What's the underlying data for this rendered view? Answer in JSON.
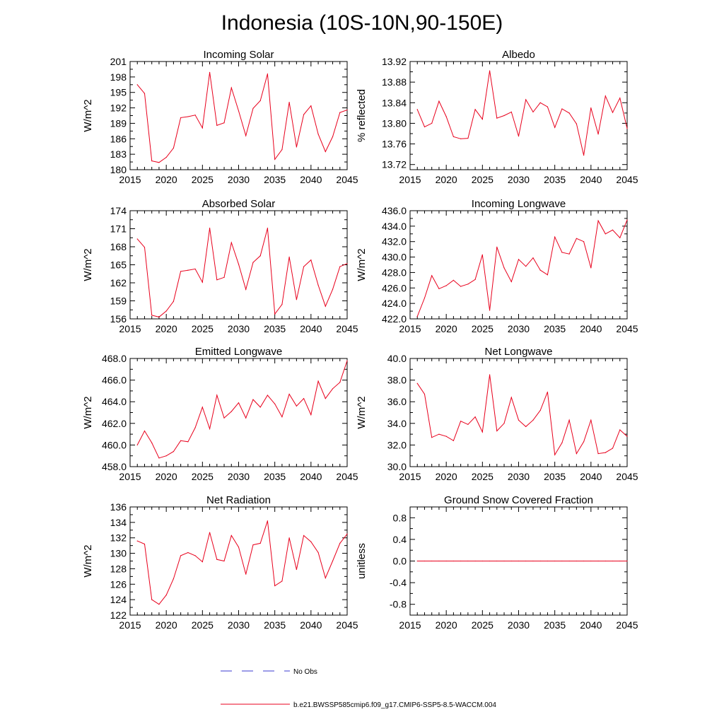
{
  "figure": {
    "title": "Indonesia (10S-10N,90-150E)"
  },
  "legend": {
    "entries": [
      {
        "label": "No Obs",
        "color": "#3b3bd0",
        "style": "dashed"
      },
      {
        "label": "b.e21.BWSSP585cmip6.f09_g17.CMIP6-SSP5-8.5-WACCM.004",
        "color": "#e8001c",
        "style": "solid"
      }
    ]
  },
  "colors": {
    "series": "#e8001c",
    "axes": "#000000"
  },
  "chart_data": [
    {
      "type": "line",
      "title": "Incoming Solar",
      "ylabel": "W/m^2",
      "xlim": [
        2015,
        2045
      ],
      "ylim": [
        180,
        201
      ],
      "yticks": [
        "180",
        "183",
        "186",
        "189",
        "192",
        "195",
        "198",
        "201"
      ],
      "xticks": [
        "2015",
        "2020",
        "2025",
        "2030",
        "2035",
        "2040",
        "2045"
      ],
      "x": [
        2016,
        2017,
        2018,
        2019,
        2020,
        2021,
        2022,
        2023,
        2024,
        2025,
        2026,
        2027,
        2028,
        2029,
        2030,
        2031,
        2032,
        2033,
        2034,
        2035,
        2036,
        2037,
        2038,
        2039,
        2040,
        2041,
        2042,
        2043,
        2044,
        2045
      ],
      "values": [
        196.5,
        194.8,
        181.7,
        181.4,
        182.4,
        184.2,
        190.1,
        190.3,
        190.6,
        188.1,
        198.9,
        188.6,
        189.1,
        195.9,
        191.4,
        186.6,
        191.9,
        193.4,
        198.6,
        182.0,
        183.9,
        193.1,
        184.4,
        190.7,
        192.4,
        186.9,
        183.5,
        186.4,
        191.1,
        191.6
      ]
    },
    {
      "type": "line",
      "title": "Albedo",
      "ylabel": "% reflected",
      "xlim": [
        2015,
        2045
      ],
      "ylim": [
        13.71,
        13.92
      ],
      "yticks": [
        "13.72",
        "13.76",
        "13.80",
        "13.84",
        "13.88",
        "13.92"
      ],
      "xticks": [
        "2015",
        "2020",
        "2025",
        "2030",
        "2035",
        "2040",
        "2045"
      ],
      "x": [
        2016,
        2017,
        2018,
        2019,
        2020,
        2021,
        2022,
        2023,
        2024,
        2025,
        2026,
        2027,
        2028,
        2029,
        2030,
        2031,
        2032,
        2033,
        2034,
        2035,
        2036,
        2037,
        2038,
        2039,
        2040,
        2041,
        2042,
        2043,
        2044,
        2045
      ],
      "values": [
        13.827,
        13.793,
        13.8,
        13.843,
        13.813,
        13.774,
        13.77,
        13.771,
        13.827,
        13.808,
        13.902,
        13.81,
        13.815,
        13.822,
        13.775,
        13.846,
        13.822,
        13.84,
        13.832,
        13.792,
        13.828,
        13.82,
        13.799,
        13.738,
        13.83,
        13.779,
        13.853,
        13.821,
        13.849,
        13.79
      ]
    },
    {
      "type": "line",
      "title": "Absorbed Solar",
      "ylabel": "W/m^2",
      "xlim": [
        2015,
        2045
      ],
      "ylim": [
        156,
        174
      ],
      "yticks": [
        "156",
        "159",
        "162",
        "165",
        "168",
        "171",
        "174"
      ],
      "xticks": [
        "2015",
        "2020",
        "2025",
        "2030",
        "2035",
        "2040",
        "2045"
      ],
      "x": [
        2016,
        2017,
        2018,
        2019,
        2020,
        2021,
        2022,
        2023,
        2024,
        2025,
        2026,
        2027,
        2028,
        2029,
        2030,
        2031,
        2032,
        2033,
        2034,
        2035,
        2036,
        2037,
        2038,
        2039,
        2040,
        2041,
        2042,
        2043,
        2044,
        2045
      ],
      "values": [
        169.3,
        167.9,
        156.6,
        156.3,
        157.3,
        158.9,
        163.9,
        164.1,
        164.3,
        162.1,
        171.1,
        162.5,
        162.9,
        168.7,
        165.1,
        160.9,
        165.4,
        166.5,
        171.1,
        156.8,
        158.4,
        166.3,
        159.2,
        164.7,
        165.8,
        161.6,
        158.1,
        160.9,
        164.7,
        165.2
      ]
    },
    {
      "type": "line",
      "title": "Incoming Longwave",
      "ylabel": "W/m^2",
      "xlim": [
        2015,
        2045
      ],
      "ylim": [
        422.0,
        436.0
      ],
      "yticks": [
        "422.0",
        "424.0",
        "426.0",
        "428.0",
        "430.0",
        "432.0",
        "434.0",
        "436.0"
      ],
      "xticks": [
        "2015",
        "2020",
        "2025",
        "2030",
        "2035",
        "2040",
        "2045"
      ],
      "x": [
        2016,
        2017,
        2018,
        2019,
        2020,
        2021,
        2022,
        2023,
        2024,
        2025,
        2026,
        2027,
        2028,
        2029,
        2030,
        2031,
        2032,
        2033,
        2034,
        2035,
        2036,
        2037,
        2038,
        2039,
        2040,
        2041,
        2042,
        2043,
        2044,
        2045
      ],
      "values": [
        422.3,
        424.7,
        427.6,
        425.9,
        426.3,
        427.0,
        426.2,
        426.5,
        427.1,
        430.3,
        423.1,
        431.3,
        428.6,
        426.8,
        429.7,
        428.8,
        429.9,
        428.3,
        427.7,
        432.6,
        430.6,
        430.4,
        432.4,
        432.0,
        428.6,
        434.7,
        433.0,
        433.5,
        432.5,
        434.8
      ]
    },
    {
      "type": "line",
      "title": "Emitted Longwave",
      "ylabel": "W/m^2",
      "xlim": [
        2015,
        2045
      ],
      "ylim": [
        458.0,
        468.0
      ],
      "yticks": [
        "458.0",
        "460.0",
        "462.0",
        "464.0",
        "466.0",
        "468.0"
      ],
      "xticks": [
        "2015",
        "2020",
        "2025",
        "2030",
        "2035",
        "2040",
        "2045"
      ],
      "x": [
        2016,
        2017,
        2018,
        2019,
        2020,
        2021,
        2022,
        2023,
        2024,
        2025,
        2026,
        2027,
        2028,
        2029,
        2030,
        2031,
        2032,
        2033,
        2034,
        2035,
        2036,
        2037,
        2038,
        2039,
        2040,
        2041,
        2042,
        2043,
        2044,
        2045
      ],
      "values": [
        460.0,
        461.3,
        460.2,
        458.8,
        459.0,
        459.4,
        460.4,
        460.3,
        461.6,
        463.5,
        461.5,
        464.6,
        462.5,
        463.1,
        463.9,
        462.5,
        464.2,
        463.5,
        464.6,
        463.8,
        462.6,
        464.7,
        463.6,
        464.3,
        462.8,
        465.9,
        464.3,
        465.2,
        465.8,
        467.8
      ]
    },
    {
      "type": "line",
      "title": "Net Longwave",
      "ylabel": "W/m^2",
      "xlim": [
        2015,
        2045
      ],
      "ylim": [
        30.0,
        40.0
      ],
      "yticks": [
        "30.0",
        "32.0",
        "34.0",
        "36.0",
        "38.0",
        "40.0"
      ],
      "xticks": [
        "2015",
        "2020",
        "2025",
        "2030",
        "2035",
        "2040",
        "2045"
      ],
      "x": [
        2016,
        2017,
        2018,
        2019,
        2020,
        2021,
        2022,
        2023,
        2024,
        2025,
        2026,
        2027,
        2028,
        2029,
        2030,
        2031,
        2032,
        2033,
        2034,
        2035,
        2036,
        2037,
        2038,
        2039,
        2040,
        2041,
        2042,
        2043,
        2044,
        2045
      ],
      "values": [
        37.7,
        36.7,
        32.7,
        33.0,
        32.8,
        32.4,
        34.2,
        33.9,
        34.6,
        33.2,
        38.5,
        33.3,
        34.0,
        36.4,
        34.3,
        33.7,
        34.3,
        35.2,
        36.9,
        31.1,
        32.2,
        34.3,
        31.2,
        32.3,
        34.3,
        31.2,
        31.3,
        31.7,
        33.4,
        32.8
      ]
    },
    {
      "type": "line",
      "title": "Net Radiation",
      "ylabel": "W/m^2",
      "xlim": [
        2015,
        2045
      ],
      "ylim": [
        122,
        136
      ],
      "yticks": [
        "122",
        "124",
        "126",
        "128",
        "130",
        "132",
        "134",
        "136"
      ],
      "xticks": [
        "2015",
        "2020",
        "2025",
        "2030",
        "2035",
        "2040",
        "2045"
      ],
      "x": [
        2016,
        2017,
        2018,
        2019,
        2020,
        2021,
        2022,
        2023,
        2024,
        2025,
        2026,
        2027,
        2028,
        2029,
        2030,
        2031,
        2032,
        2033,
        2034,
        2035,
        2036,
        2037,
        2038,
        2039,
        2040,
        2041,
        2042,
        2043,
        2044,
        2045
      ],
      "values": [
        131.6,
        131.2,
        124.0,
        123.4,
        124.6,
        126.7,
        129.7,
        130.1,
        129.7,
        128.9,
        132.7,
        129.2,
        129.0,
        132.3,
        130.8,
        127.3,
        131.1,
        131.3,
        134.2,
        125.8,
        126.4,
        132.0,
        127.9,
        132.3,
        131.5,
        130.1,
        126.8,
        129.0,
        131.3,
        132.5
      ]
    },
    {
      "type": "line",
      "title": "Ground Snow Covered Fraction",
      "ylabel": "unitless",
      "xlim": [
        2015,
        2045
      ],
      "ylim": [
        -1.0,
        1.0
      ],
      "yticks": [
        "-0.8",
        "-0.4",
        "0.0",
        "0.4",
        "0.8"
      ],
      "xticks": [
        "2015",
        "2020",
        "2025",
        "2030",
        "2035",
        "2040",
        "2045"
      ],
      "x": [
        2016,
        2017,
        2018,
        2019,
        2020,
        2021,
        2022,
        2023,
        2024,
        2025,
        2026,
        2027,
        2028,
        2029,
        2030,
        2031,
        2032,
        2033,
        2034,
        2035,
        2036,
        2037,
        2038,
        2039,
        2040,
        2041,
        2042,
        2043,
        2044,
        2045
      ],
      "values": [
        0,
        0,
        0,
        0,
        0,
        0,
        0,
        0,
        0,
        0,
        0,
        0,
        0,
        0,
        0,
        0,
        0,
        0,
        0,
        0,
        0,
        0,
        0,
        0,
        0,
        0,
        0,
        0,
        0,
        0
      ]
    }
  ]
}
